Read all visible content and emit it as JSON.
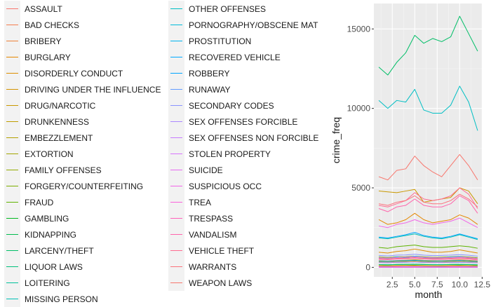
{
  "chart_data": {
    "type": "line",
    "xlabel": "month",
    "ylabel": "crime_freq",
    "xlim": [
      1,
      12
    ],
    "ylim": [
      -600,
      16600
    ],
    "x_ticks": [
      2.5,
      5.0,
      7.5,
      10.0,
      12.5
    ],
    "x_tick_labels": [
      "2.5",
      "5.0",
      "7.5",
      "10.0",
      "12.5"
    ],
    "y_ticks": [
      0,
      5000,
      10000,
      15000
    ],
    "y_tick_labels": [
      "0",
      "5000",
      "10000",
      "15000"
    ],
    "grid": true,
    "legend_position": "left",
    "x": [
      1,
      2,
      3,
      4,
      5,
      6,
      7,
      8,
      9,
      10,
      11,
      12
    ],
    "series": [
      {
        "name": "ASSAULT",
        "color": "#F8766D",
        "values": [
          5700,
          5500,
          6100,
          6200,
          7000,
          6400,
          6000,
          5700,
          6400,
          7100,
          6400,
          5500
        ]
      },
      {
        "name": "BAD CHECKS",
        "color": "#F47D4D",
        "values": [
          60,
          55,
          65,
          60,
          70,
          60,
          55,
          60,
          65,
          70,
          60,
          55
        ]
      },
      {
        "name": "BRIBERY",
        "color": "#EC8239",
        "values": [
          5,
          4,
          6,
          5,
          6,
          5,
          5,
          4,
          6,
          5,
          5,
          4
        ]
      },
      {
        "name": "BURGLARY",
        "color": "#E58700",
        "values": [
          3000,
          2700,
          2800,
          3000,
          3400,
          3000,
          2800,
          2900,
          3000,
          3300,
          3100,
          2700
        ]
      },
      {
        "name": "DISORDERLY CONDUCT",
        "color": "#DC8D00",
        "values": [
          950,
          900,
          1000,
          1050,
          1150,
          1050,
          950,
          950,
          1000,
          1100,
          1000,
          900
        ]
      },
      {
        "name": "DRIVING UNDER THE INFLUENCE",
        "color": "#D39200",
        "values": [
          420,
          400,
          430,
          450,
          480,
          440,
          420,
          420,
          440,
          470,
          440,
          400
        ]
      },
      {
        "name": "DRUG/NARCOTIC",
        "color": "#C99800",
        "values": [
          4800,
          4750,
          4700,
          4800,
          4900,
          4100,
          4200,
          4300,
          4400,
          5000,
          4800,
          4000
        ]
      },
      {
        "name": "DRUNKENNESS",
        "color": "#BE9C00",
        "values": [
          350,
          330,
          360,
          370,
          390,
          360,
          340,
          340,
          360,
          380,
          360,
          330
        ]
      },
      {
        "name": "EMBEZZLEMENT",
        "color": "#B3A000",
        "values": [
          110,
          100,
          110,
          120,
          130,
          110,
          100,
          100,
          110,
          120,
          110,
          100
        ]
      },
      {
        "name": "EXTORTION",
        "color": "#A3A500",
        "values": [
          20,
          18,
          22,
          20,
          24,
          20,
          18,
          20,
          22,
          24,
          20,
          18
        ]
      },
      {
        "name": "FAMILY OFFENSES",
        "color": "#93AA00",
        "values": [
          40,
          38,
          42,
          40,
          45,
          40,
          38,
          40,
          42,
          44,
          40,
          38
        ]
      },
      {
        "name": "FORGERY/COUNTERFEITING",
        "color": "#7CAE00",
        "values": [
          650,
          620,
          660,
          670,
          700,
          660,
          630,
          640,
          660,
          690,
          650,
          600
        ]
      },
      {
        "name": "FRAUD",
        "color": "#5EB300",
        "values": [
          1250,
          1200,
          1300,
          1350,
          1400,
          1300,
          1250,
          1250,
          1300,
          1350,
          1300,
          1200
        ]
      },
      {
        "name": "GAMBLING",
        "color": "#00B81F",
        "values": [
          10,
          9,
          11,
          10,
          12,
          10,
          9,
          10,
          11,
          12,
          10,
          9
        ]
      },
      {
        "name": "KIDNAPPING",
        "color": "#00BB4E",
        "values": [
          170,
          160,
          175,
          180,
          190,
          175,
          165,
          165,
          175,
          185,
          175,
          160
        ]
      },
      {
        "name": "LARCENY/THEFT",
        "color": "#00BE67",
        "values": [
          12600,
          12100,
          12900,
          13500,
          14600,
          14100,
          14400,
          14200,
          14500,
          15800,
          14700,
          13600
        ]
      },
      {
        "name": "LIQUOR LAWS",
        "color": "#00C07B",
        "values": [
          170,
          160,
          180,
          190,
          200,
          180,
          170,
          170,
          180,
          190,
          170,
          150
        ]
      },
      {
        "name": "LOITERING",
        "color": "#00C19A",
        "values": [
          40,
          38,
          42,
          40,
          45,
          40,
          38,
          40,
          42,
          44,
          40,
          38
        ]
      },
      {
        "name": "MISSING PERSON",
        "color": "#00C0B5",
        "values": [
          1850,
          1800,
          1900,
          2000,
          2100,
          1950,
          1850,
          1800,
          1900,
          2050,
          1900,
          1750
        ]
      },
      {
        "name": "OTHER OFFENSES",
        "color": "#00BFC4",
        "values": [
          10500,
          10000,
          10500,
          10400,
          11200,
          9900,
          9700,
          9700,
          10200,
          11400,
          10400,
          8600
        ]
      },
      {
        "name": "PORNOGRAPHY/OBSCENE MAT",
        "color": "#00BBDA",
        "values": [
          4,
          3,
          5,
          4,
          5,
          4,
          4,
          3,
          5,
          4,
          4,
          3
        ]
      },
      {
        "name": "PROSTITUTION",
        "color": "#00B4EF",
        "values": [
          600,
          550,
          650,
          600,
          700,
          620,
          580,
          600,
          640,
          680,
          600,
          520
        ]
      },
      {
        "name": "RECOVERED VEHICLE",
        "color": "#00A9FF",
        "values": [
          400,
          380,
          410,
          420,
          440,
          410,
          390,
          400,
          410,
          430,
          400,
          370
        ]
      },
      {
        "name": "ROBBERY",
        "color": "#00A5FF",
        "values": [
          1900,
          1850,
          1950,
          2050,
          2200,
          2000,
          1900,
          1850,
          1950,
          2100,
          1950,
          1800
        ]
      },
      {
        "name": "RUNAWAY",
        "color": "#619CFF",
        "values": [
          300,
          290,
          310,
          320,
          330,
          310,
          300,
          300,
          310,
          320,
          300,
          280
        ]
      },
      {
        "name": "SECONDARY CODES",
        "color": "#8993FF",
        "values": [
          750,
          720,
          770,
          780,
          820,
          770,
          740,
          750,
          770,
          800,
          760,
          700
        ]
      },
      {
        "name": "SEX OFFENSES FORCIBLE",
        "color": "#AC88FF",
        "values": [
          300,
          290,
          310,
          320,
          330,
          310,
          300,
          300,
          310,
          320,
          300,
          280
        ]
      },
      {
        "name": "SEX OFFENSES NON FORCIBLE",
        "color": "#C77CFF",
        "values": [
          15,
          14,
          16,
          15,
          17,
          15,
          14,
          15,
          16,
          17,
          15,
          14
        ]
      },
      {
        "name": "STOLEN PROPERTY",
        "color": "#D874FD",
        "values": [
          600,
          580,
          620,
          640,
          670,
          630,
          600,
          600,
          620,
          650,
          620,
          560
        ]
      },
      {
        "name": "SUICIDE",
        "color": "#E76BF3",
        "values": [
          35,
          33,
          37,
          35,
          40,
          35,
          33,
          35,
          37,
          39,
          35,
          33
        ]
      },
      {
        "name": "SUSPICIOUS OCC",
        "color": "#F166E8",
        "values": [
          2600,
          2500,
          2700,
          2800,
          3000,
          2800,
          2700,
          2800,
          2900,
          3100,
          2800,
          2500
        ]
      },
      {
        "name": "TREA",
        "color": "#FA62DB",
        "values": [
          1,
          0,
          1,
          0,
          1,
          0,
          1,
          0,
          1,
          0,
          1,
          0
        ]
      },
      {
        "name": "TRESPASS",
        "color": "#FF62BC",
        "values": [
          500,
          480,
          520,
          540,
          570,
          530,
          500,
          500,
          520,
          550,
          520,
          460
        ]
      },
      {
        "name": "VANDALISM",
        "color": "#FF65AC",
        "values": [
          3700,
          3500,
          3800,
          3900,
          4300,
          3900,
          3800,
          3800,
          4000,
          4500,
          4200,
          3400
        ]
      },
      {
        "name": "VEHICLE THEFT",
        "color": "#FF6C91",
        "values": [
          3900,
          3800,
          4000,
          4200,
          4700,
          4300,
          4200,
          4300,
          4500,
          5000,
          4600,
          3700
        ]
      },
      {
        "name": "WARRANTS",
        "color": "#FB727C",
        "values": [
          4000,
          3900,
          4100,
          4200,
          4500,
          4100,
          4000,
          4000,
          4200,
          4600,
          4300,
          3800
        ]
      },
      {
        "name": "WEAPON LAWS",
        "color": "#F8766D",
        "values": [
          550,
          530,
          570,
          580,
          610,
          570,
          550,
          550,
          570,
          600,
          570,
          520
        ]
      }
    ]
  }
}
